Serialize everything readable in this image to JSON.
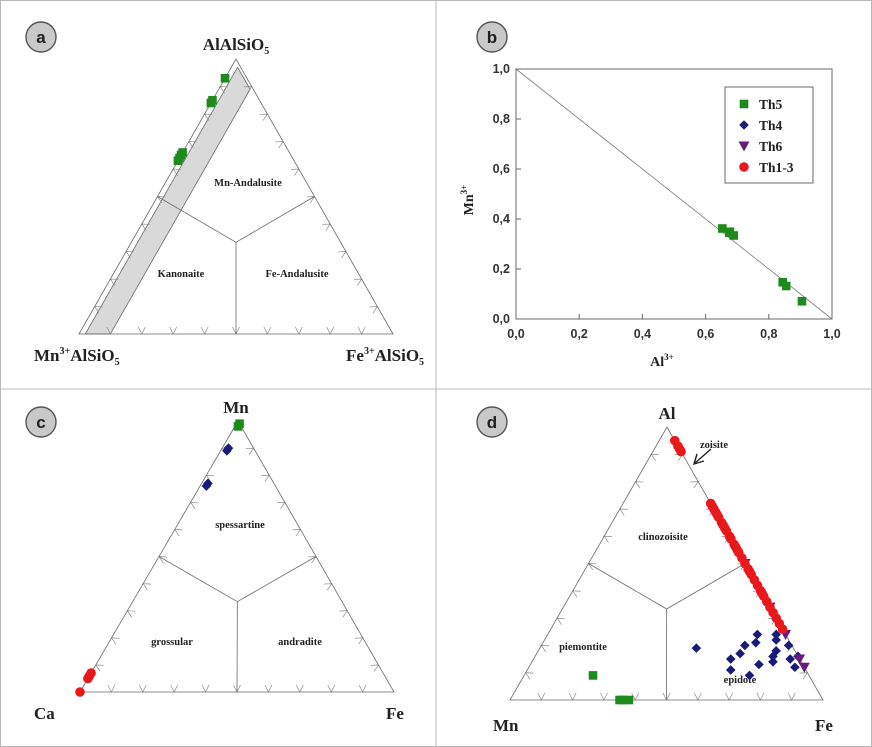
{
  "figure": {
    "grid_lines": true,
    "marker_colors": {
      "Th5": "#1e8a1e",
      "Th4": "#1a1a7a",
      "Th6": "#6a1a7a",
      "Th1-3": "#e8181c"
    }
  },
  "chart_data": [
    {
      "panel": "a",
      "type": "scatter",
      "plot": "ternary",
      "corners": {
        "top": [
          "AlAlSiO",
          "5"
        ],
        "left": [
          "Mn",
          "3+",
          "AlSiO",
          "5"
        ],
        "right": [
          "Fe",
          "3+",
          "AlSiO",
          "5"
        ]
      },
      "fields": [
        "Mn-Andalusite",
        "Kanonaite",
        "Fe-Andalusite"
      ],
      "band": {
        "fe_fraction_max": 0.08
      },
      "series": [
        {
          "name": "Th5",
          "marker": "square",
          "color": "#1e8a1e",
          "points": [
            [
              0.93,
              0.07,
              0.0
            ],
            [
              0.85,
              0.15,
              0.0
            ],
            [
              0.84,
              0.16,
              0.0
            ],
            [
              0.66,
              0.34,
              0.0
            ],
            [
              0.65,
              0.35,
              0.0
            ],
            [
              0.64,
              0.36,
              0.0
            ],
            [
              0.63,
              0.37,
              0.0
            ]
          ]
        }
      ]
    },
    {
      "panel": "b",
      "type": "scatter",
      "xlabel": [
        "Al",
        "3+"
      ],
      "ylabel": [
        "Mn",
        "3+"
      ],
      "xlim": [
        0,
        1
      ],
      "ylim": [
        0,
        1
      ],
      "xticks": [
        "0,0",
        "0,2",
        "0,4",
        "0,6",
        "0,8",
        "1,0"
      ],
      "yticks": [
        "0,0",
        "0,2",
        "0,4",
        "0,6",
        "0,8",
        "1,0"
      ],
      "reference_line": [
        [
          0,
          1
        ],
        [
          1,
          0
        ]
      ],
      "legend": {
        "placement": "top-right",
        "entries": [
          "Th5",
          "Th4",
          "Th6",
          "Th1-3"
        ]
      },
      "series": [
        {
          "name": "Th5",
          "marker": "square",
          "color": "#1e8a1e",
          "x": [
            0.653,
            0.675,
            0.689,
            0.677,
            0.844,
            0.855,
            0.905
          ],
          "y": [
            0.362,
            0.345,
            0.334,
            0.349,
            0.147,
            0.132,
            0.071
          ]
        },
        {
          "name": "Th4",
          "marker": "diamond",
          "color": "#1a1a7a",
          "x": [],
          "y": []
        },
        {
          "name": "Th6",
          "marker": "triangle-down",
          "color": "#6a1a7a",
          "x": [],
          "y": []
        },
        {
          "name": "Th1-3",
          "marker": "circle",
          "color": "#e8181c",
          "x": [],
          "y": []
        }
      ]
    },
    {
      "panel": "c",
      "type": "scatter",
      "plot": "ternary",
      "corners": {
        "top": [
          "Mn"
        ],
        "left": [
          "Ca"
        ],
        "right": [
          "Fe"
        ]
      },
      "fields": [
        "spessartine",
        "grossular",
        "andradite"
      ],
      "series": [
        {
          "name": "Th5",
          "marker": "square",
          "color": "#1e8a1e",
          "points": [
            [
              0.98,
              0.01,
              0.01
            ],
            [
              0.99,
              0.0,
              0.01
            ]
          ]
        },
        {
          "name": "Th4",
          "marker": "diamond",
          "color": "#1a1a7a",
          "points": [
            [
              0.9,
              0.08,
              0.02
            ],
            [
              0.89,
              0.09,
              0.02
            ],
            [
              0.77,
              0.21,
              0.02
            ],
            [
              0.76,
              0.22,
              0.02
            ]
          ]
        },
        {
          "name": "Th1-3",
          "marker": "circle",
          "color": "#e8181c",
          "points": [
            [
              0.05,
              0.95,
              0.0
            ],
            [
              0.06,
              0.94,
              0.0
            ],
            [
              0.07,
              0.93,
              0.0
            ],
            [
              0.0,
              1.0,
              0.0
            ]
          ]
        }
      ]
    },
    {
      "panel": "d",
      "type": "scatter",
      "plot": "ternary",
      "corners": {
        "top": [
          "Al"
        ],
        "left": [
          "Mn"
        ],
        "right": [
          "Fe"
        ]
      },
      "fields": [
        "clinozoisite",
        "piemontite",
        "epidote"
      ],
      "annotation": "zoisite",
      "series": [
        {
          "name": "Th5",
          "marker": "square",
          "color": "#1e8a1e",
          "points": [
            [
              0.09,
              0.69,
              0.22
            ],
            [
              0.0,
              0.65,
              0.35
            ],
            [
              0.0,
              0.64,
              0.36
            ],
            [
              0.0,
              0.62,
              0.38
            ]
          ]
        },
        {
          "name": "Th4",
          "marker": "diamond",
          "color": "#1a1a7a",
          "points": [
            [
              0.19,
              0.31,
              0.5
            ],
            [
              0.15,
              0.22,
              0.63
            ],
            [
              0.11,
              0.24,
              0.65
            ],
            [
              0.2,
              0.15,
              0.65
            ],
            [
              0.13,
              0.14,
              0.73
            ],
            [
              0.21,
              0.11,
              0.68
            ],
            [
              0.18,
              0.06,
              0.76
            ],
            [
              0.16,
              0.08,
              0.76
            ],
            [
              0.12,
              0.03,
              0.85
            ],
            [
              0.22,
              0.04,
              0.74
            ],
            [
              0.24,
              0.09,
              0.67
            ],
            [
              0.17,
              0.18,
              0.65
            ],
            [
              0.09,
              0.19,
              0.72
            ],
            [
              0.14,
              0.09,
              0.77
            ],
            [
              0.2,
              0.01,
              0.79
            ],
            [
              0.15,
              0.03,
              0.82
            ],
            [
              0.24,
              0.03,
              0.73
            ],
            [
              0.16,
              0.0,
              0.84
            ]
          ]
        },
        {
          "name": "Th6",
          "marker": "triangle-down",
          "color": "#6a1a7a",
          "points": [
            [
              0.5,
              0.0,
              0.5
            ],
            [
              0.34,
              0.0,
              0.66
            ],
            [
              0.24,
              0.0,
              0.76
            ],
            [
              0.15,
              0.0,
              0.85
            ],
            [
              0.12,
              0.0,
              0.88
            ]
          ]
        },
        {
          "name": "Th1-3",
          "marker": "circle",
          "color": "#e8181c",
          "points": [
            [
              0.95,
              0.0,
              0.05
            ],
            [
              0.93,
              0.0,
              0.07
            ],
            [
              0.91,
              0.0,
              0.09
            ],
            [
              0.92,
              0.0,
              0.08
            ],
            [
              0.72,
              0.0,
              0.28
            ],
            [
              0.71,
              0.0,
              0.29
            ],
            [
              0.7,
              0.0,
              0.3
            ],
            [
              0.68,
              0.0,
              0.32
            ],
            [
              0.67,
              0.0,
              0.33
            ],
            [
              0.65,
              0.0,
              0.35
            ],
            [
              0.64,
              0.0,
              0.36
            ],
            [
              0.62,
              0.0,
              0.38
            ],
            [
              0.6,
              0.0,
              0.4
            ],
            [
              0.59,
              0.0,
              0.41
            ],
            [
              0.57,
              0.0,
              0.43
            ],
            [
              0.55,
              0.0,
              0.45
            ],
            [
              0.54,
              0.0,
              0.46
            ],
            [
              0.52,
              0.0,
              0.48
            ],
            [
              0.5,
              0.0,
              0.5
            ],
            [
              0.48,
              0.0,
              0.52
            ],
            [
              0.46,
              0.0,
              0.54
            ],
            [
              0.44,
              0.0,
              0.56
            ],
            [
              0.42,
              0.0,
              0.58
            ],
            [
              0.4,
              0.0,
              0.6
            ],
            [
              0.38,
              0.0,
              0.62
            ],
            [
              0.36,
              0.0,
              0.64
            ],
            [
              0.34,
              0.0,
              0.66
            ],
            [
              0.32,
              0.0,
              0.68
            ],
            [
              0.3,
              0.0,
              0.7
            ],
            [
              0.28,
              0.0,
              0.72
            ],
            [
              0.26,
              0.0,
              0.74
            ],
            [
              0.69,
              0.0,
              0.31
            ],
            [
              0.63,
              0.0,
              0.37
            ],
            [
              0.56,
              0.0,
              0.44
            ],
            [
              0.47,
              0.0,
              0.53
            ],
            [
              0.39,
              0.0,
              0.61
            ]
          ]
        }
      ]
    }
  ]
}
